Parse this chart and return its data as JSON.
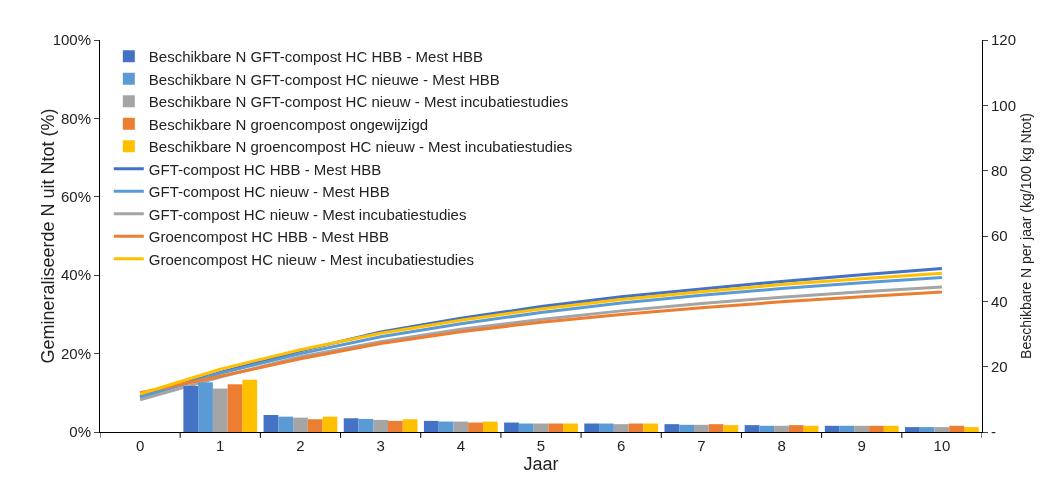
{
  "chart_data": {
    "type": "bar",
    "xlabel": "Jaar",
    "ylabel": "Gemineraliseerde N uit Ntot (%)",
    "y2label": "Beschikbare N per jaar (kg/100 kg Ntot)",
    "categories": [
      "0",
      "1",
      "2",
      "3",
      "4",
      "5",
      "6",
      "7",
      "8",
      "9",
      "10"
    ],
    "ylim": [
      0,
      100
    ],
    "yticks": [
      {
        "value": 0,
        "label": "0%"
      },
      {
        "value": 20,
        "label": "20%"
      },
      {
        "value": 40,
        "label": "40%"
      },
      {
        "value": 60,
        "label": "60%"
      },
      {
        "value": 80,
        "label": "80%"
      },
      {
        "value": 100,
        "label": "100%"
      }
    ],
    "y2lim": [
      0,
      120
    ],
    "y2ticks": [
      {
        "value": 0,
        "label": "-"
      },
      20,
      40,
      60,
      80,
      100,
      120
    ],
    "grid": false,
    "legend": "top left",
    "series": [
      {
        "name": "Beschikbare N GFT-compost HC HBB - Mest HBB",
        "axis": "y2",
        "color": "#4472c4",
        "values": [
          null,
          14.1,
          5.2,
          4.2,
          3.4,
          2.9,
          2.6,
          2.4,
          2.1,
          1.9,
          1.5
        ]
      },
      {
        "name": "Beschikbare N GFT-compost HC nieuwe - Mest HBB",
        "axis": "y2",
        "color": "#5b9bd5",
        "values": [
          null,
          15.2,
          4.7,
          4.0,
          3.2,
          2.6,
          2.6,
          2.2,
          1.9,
          1.9,
          1.5
        ]
      },
      {
        "name": "Beschikbare N GFT-compost HC nieuw - Mest incubatiestudies",
        "axis": "y2",
        "color": "#a5a5a5",
        "values": [
          null,
          13.3,
          4.4,
          3.7,
          3.2,
          2.6,
          2.4,
          2.2,
          1.9,
          1.9,
          1.5
        ]
      },
      {
        "name": "Beschikbare N groencompost ongewijzigd",
        "axis": "y2",
        "color": "#ed7d31",
        "values": [
          null,
          14.6,
          3.9,
          3.4,
          2.9,
          2.6,
          2.6,
          2.4,
          2.1,
          1.9,
          1.9
        ]
      },
      {
        "name": "Beschikbare N groencompost HC nieuw - Mest incubatiestudies",
        "axis": "y2",
        "color": "#ffc000",
        "values": [
          null,
          16.0,
          4.7,
          3.9,
          3.2,
          2.6,
          2.6,
          2.1,
          1.9,
          1.9,
          1.5
        ]
      },
      {
        "name": "GFT-compost HC HBB - Mest HBB",
        "type": "line",
        "axis": "y",
        "color": "#4472c4",
        "values": [
          9.1,
          15.2,
          20.7,
          25.5,
          29.0,
          32.0,
          34.5,
          36.5,
          38.4,
          40.1,
          41.7
        ]
      },
      {
        "name": "GFT-compost HC nieuw - Mest HBB",
        "type": "line",
        "axis": "y",
        "color": "#5b9bd5",
        "values": [
          8.8,
          15.0,
          20.0,
          24.3,
          27.6,
          30.5,
          32.9,
          34.9,
          36.6,
          38.1,
          39.4
        ]
      },
      {
        "name": "GFT-compost HC nieuw - Mest incubatiestudies",
        "type": "line",
        "axis": "y",
        "color": "#a5a5a5",
        "values": [
          8.2,
          14.0,
          19.2,
          23.0,
          26.2,
          28.7,
          30.9,
          32.8,
          34.4,
          35.8,
          37.0
        ]
      },
      {
        "name": "Groencompost HC HBB - Mest HBB",
        "type": "line",
        "axis": "y",
        "color": "#ed7d31",
        "values": [
          10.0,
          14.2,
          18.7,
          22.6,
          25.6,
          28.0,
          30.0,
          31.7,
          33.2,
          34.5,
          35.7
        ]
      },
      {
        "name": "Groencompost HC nieuw - Mest incubatiestudies",
        "type": "line",
        "axis": "y",
        "color": "#ffc000",
        "values": [
          9.7,
          16.0,
          21.0,
          25.2,
          28.5,
          31.4,
          33.8,
          35.8,
          37.6,
          39.1,
          40.5
        ]
      }
    ]
  }
}
